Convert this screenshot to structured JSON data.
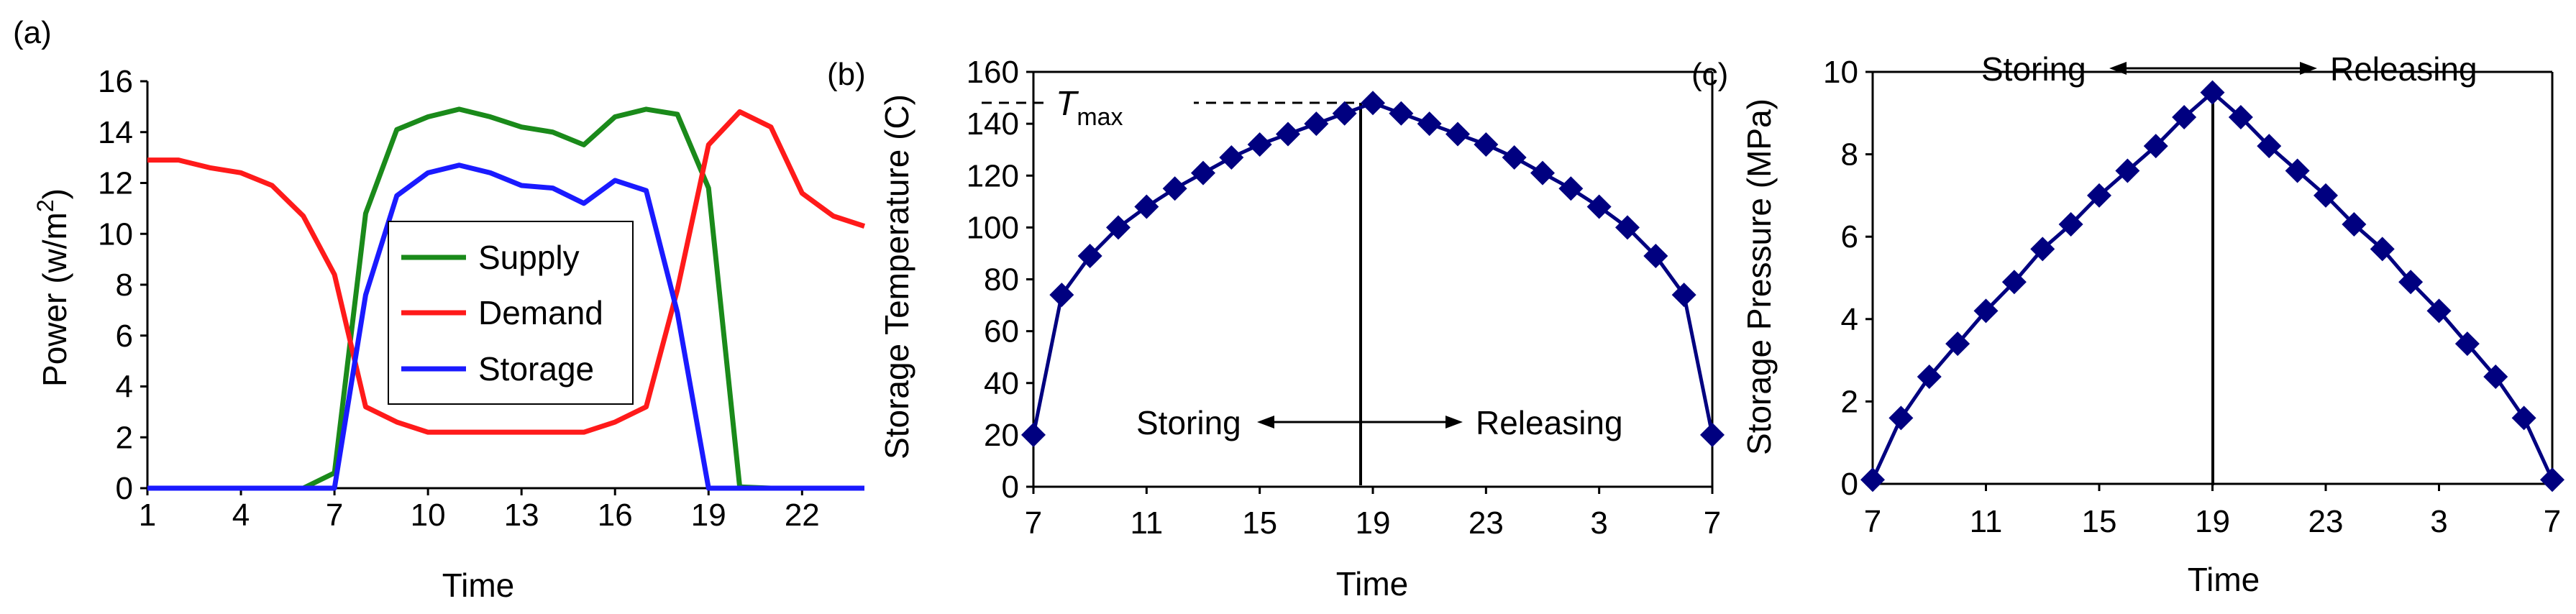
{
  "chart_data": [
    {
      "panel_label": "(a)",
      "type": "line",
      "xlabel": "Time",
      "ylabel": "Power (w/m",
      "ylabel_sup": "2",
      "ylabel_end": ")",
      "xlim": [
        1,
        24
      ],
      "ylim": [
        0,
        16
      ],
      "xticks": [
        1,
        4,
        7,
        10,
        13,
        16,
        19,
        22
      ],
      "yticks": [
        0,
        2,
        4,
        6,
        8,
        10,
        12,
        14,
        16
      ],
      "x": [
        1,
        2,
        3,
        4,
        5,
        6,
        7,
        8,
        9,
        10,
        11,
        12,
        13,
        14,
        15,
        16,
        17,
        18,
        19,
        20,
        21,
        22,
        23,
        24
      ],
      "series": [
        {
          "name": "Supply",
          "color": "#1a8a1a",
          "values": [
            0,
            0,
            0,
            0,
            0,
            0,
            0.6,
            10.8,
            14.1,
            14.6,
            14.9,
            14.6,
            14.2,
            14.0,
            13.5,
            14.6,
            14.9,
            14.7,
            11.8,
            0.05,
            0,
            0,
            0,
            0
          ]
        },
        {
          "name": "Demand",
          "color": "#ff1a1a",
          "values": [
            12.9,
            12.9,
            12.6,
            12.4,
            11.9,
            10.7,
            8.4,
            3.2,
            2.6,
            2.2,
            2.2,
            2.2,
            2.2,
            2.2,
            2.2,
            2.6,
            3.2,
            7.8,
            13.5,
            14.8,
            14.2,
            11.6,
            10.7,
            10.3
          ]
        },
        {
          "name": "Storage",
          "color": "#1a1aff",
          "values": [
            0,
            0,
            0,
            0,
            0,
            0,
            0,
            7.6,
            11.5,
            12.4,
            12.7,
            12.4,
            11.9,
            11.8,
            11.2,
            12.1,
            11.7,
            6.9,
            0,
            0,
            0,
            0,
            0,
            0
          ]
        }
      ],
      "legend": "center"
    },
    {
      "panel_label": "(b)",
      "type": "line",
      "xlabel": "Time",
      "ylabel": "Storage Temperature (C)",
      "xticks": [
        "7",
        "11",
        "15",
        "19",
        "23",
        "3",
        "7"
      ],
      "ylim": [
        0,
        160
      ],
      "yticks": [
        0,
        20,
        40,
        60,
        80,
        100,
        120,
        140,
        160
      ],
      "color": "#000080",
      "values": [
        20,
        74,
        89,
        100,
        108,
        115,
        121,
        127,
        132,
        136,
        140,
        144,
        148,
        144,
        140,
        136,
        132,
        127,
        121,
        115,
        108,
        100,
        89,
        74,
        20
      ],
      "annotation_tmax": "T",
      "annotation_tmax_sub": "max",
      "storing_label": "Storing",
      "releasing_label": "Releasing"
    },
    {
      "panel_label": "(c)",
      "type": "line",
      "xlabel": "Time",
      "ylabel": "Storage Pressure (MPa)",
      "xticks": [
        "7",
        "11",
        "15",
        "19",
        "23",
        "3",
        "7"
      ],
      "ylim": [
        0,
        10
      ],
      "yticks": [
        0,
        2,
        4,
        6,
        8,
        10
      ],
      "color": "#000080",
      "values": [
        0.1,
        1.6,
        2.6,
        3.4,
        4.2,
        4.9,
        5.7,
        6.3,
        7.0,
        7.6,
        8.2,
        8.9,
        9.5,
        8.9,
        8.2,
        7.6,
        7.0,
        6.3,
        5.7,
        4.9,
        4.2,
        3.4,
        2.6,
        1.6,
        0.1
      ],
      "storing_label": "Storing",
      "releasing_label": "Releasing"
    }
  ]
}
